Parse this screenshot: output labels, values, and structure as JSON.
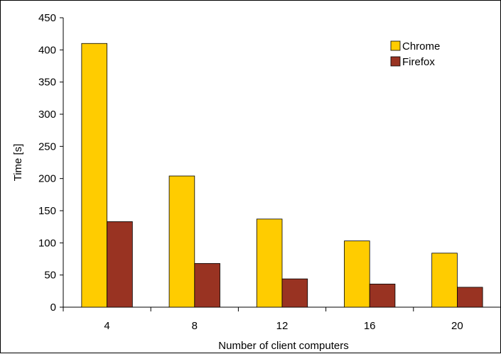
{
  "chart_data": {
    "type": "bar",
    "title": "",
    "xlabel": "Number of client computers",
    "ylabel": "Time [s]",
    "categories": [
      "4",
      "8",
      "12",
      "16",
      "20"
    ],
    "series": [
      {
        "name": "Chrome",
        "color": "#FFCC00",
        "values": [
          410,
          204,
          137,
          103,
          84
        ]
      },
      {
        "name": "Firefox",
        "color": "#993322",
        "values": [
          133,
          68,
          44,
          36,
          31
        ]
      }
    ],
    "ylim": [
      0,
      450
    ],
    "yticks": [
      "0",
      "50",
      "100",
      "150",
      "200",
      "250",
      "300",
      "350",
      "400",
      "450"
    ],
    "grid": false,
    "legend_position": "top-right"
  }
}
